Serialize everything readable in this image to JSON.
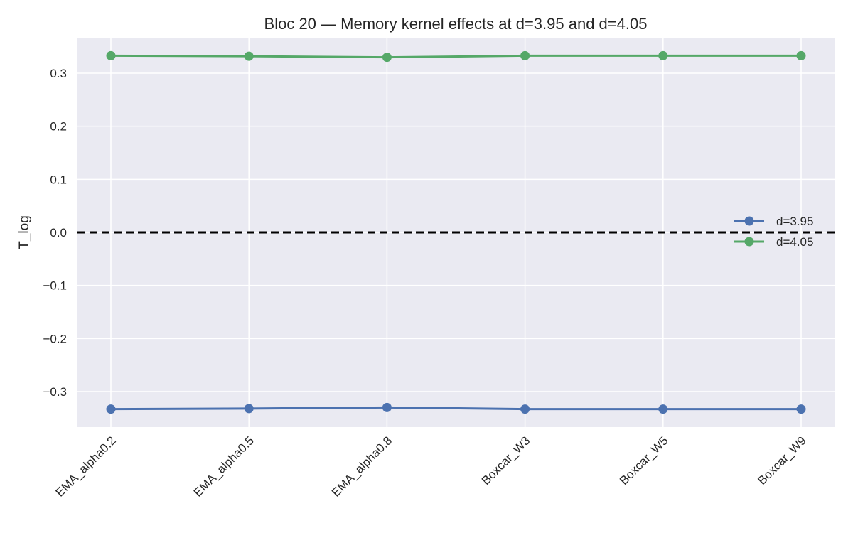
{
  "chart_data": {
    "type": "line",
    "title": "Bloc 20 — Memory kernel effects at d=3.95 and d=4.05",
    "xlabel": "",
    "ylabel": "T_log",
    "categories": [
      "EMA_alpha0.2",
      "EMA_alpha0.5",
      "EMA_alpha0.8",
      "Boxcar_W3",
      "Boxcar_W5",
      "Boxcar_W9"
    ],
    "series": [
      {
        "name": "d=3.95",
        "color": "#4c72b0",
        "values": [
          -0.333,
          -0.332,
          -0.33,
          -0.333,
          -0.333,
          -0.333
        ]
      },
      {
        "name": "d=4.05",
        "color": "#55a868",
        "values": [
          0.333,
          0.332,
          0.33,
          0.333,
          0.333,
          0.333
        ]
      }
    ],
    "ylim": [
      -0.367,
      0.367
    ],
    "yticks": [
      -0.3,
      -0.2,
      -0.1,
      0.0,
      0.1,
      0.2,
      0.3
    ],
    "ytick_labels": [
      "−0.3",
      "−0.2",
      "−0.1",
      "0.0",
      "0.1",
      "0.2",
      "0.3"
    ],
    "reference_line": {
      "y": 0.0,
      "style": "dashed",
      "color": "#000000"
    },
    "grid": true,
    "background": "#eaeaf2",
    "legend_position": "center-right"
  }
}
